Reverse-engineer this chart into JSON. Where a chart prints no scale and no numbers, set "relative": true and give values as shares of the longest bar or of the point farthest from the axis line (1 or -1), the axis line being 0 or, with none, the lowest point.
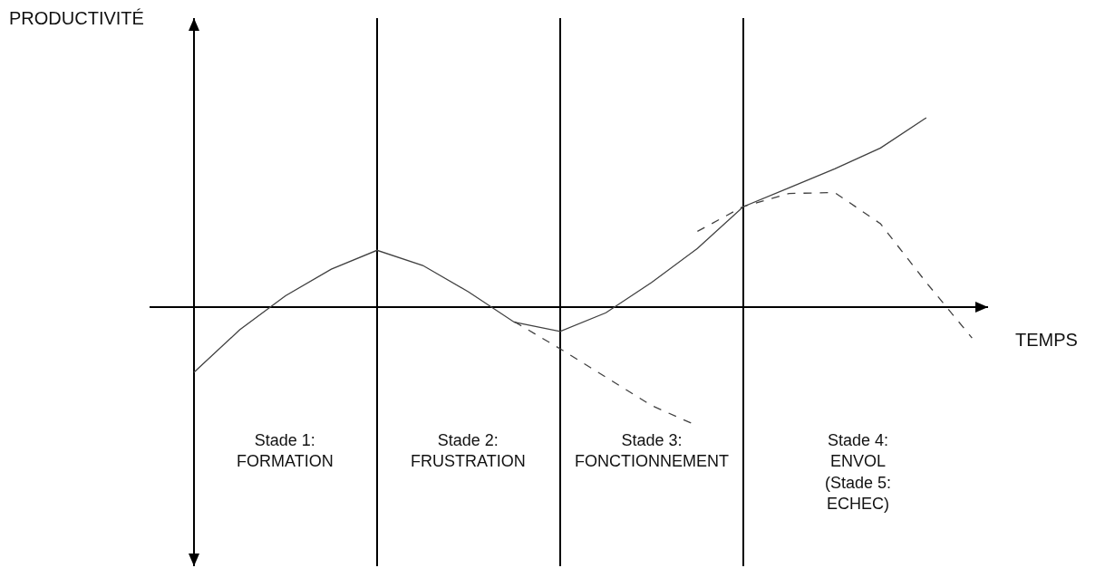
{
  "chart_data": {
    "type": "line",
    "relative": true,
    "xlabel": "TEMPS",
    "ylabel": "PRODUCTIVITÉ",
    "line_style": "solid",
    "marker": "none",
    "grid": "x",
    "categories": [
      null,
      null,
      null,
      null,
      null,
      null,
      null,
      null,
      null,
      null,
      null,
      null,
      null,
      null,
      null,
      null,
      null,
      null
    ],
    "series": [
      {
        "color": "#404040",
        "values": [
          -0.344,
          -0.12,
          0.06,
          0.2,
          0.3,
          0.22,
          0.08,
          -0.08,
          -0.128,
          -0.03,
          0.13,
          0.31,
          0.53,
          0.63,
          0.73,
          0.84,
          1,
          null
        ]
      },
      {
        "color": "#404040",
        "line_style": "dashed",
        "values": [
          null,
          null,
          null,
          null,
          null,
          null,
          null,
          -0.077,
          -0.22,
          -0.37,
          -0.52,
          -0.627,
          null,
          null,
          null,
          null,
          null,
          null
        ]
      },
      {
        "color": "#404040",
        "line_style": "dashed",
        "values": [
          null,
          null,
          null,
          null,
          null,
          null,
          null,
          null,
          null,
          null,
          null,
          0.4,
          0.531,
          0.6,
          0.605,
          0.44,
          0.13,
          -0.163
        ]
      }
    ],
    "annotations": [
      "Stade 1:\nFORMATION",
      "Stade 2:\nFRUSTRATION",
      "Stade 3:\nFONCTIONNEMENT",
      "Stade 4:\nENVOL\n(Stade 5:\nECHEC)"
    ]
  }
}
